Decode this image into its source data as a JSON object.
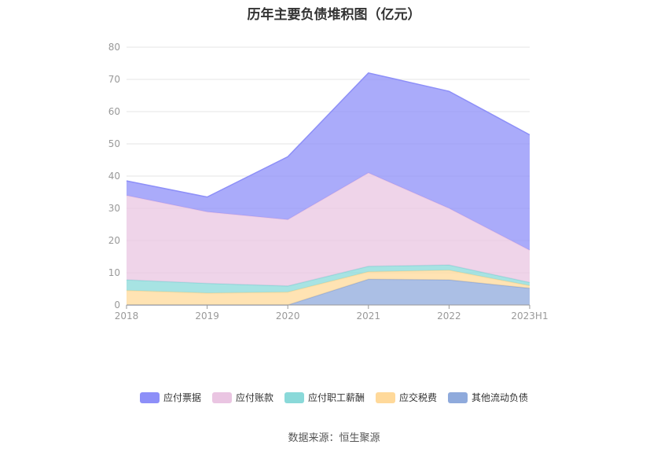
{
  "title": "历年主要负债堆积图（亿元）",
  "source": "数据来源：恒生聚源",
  "chart_data": {
    "type": "area",
    "stacked": true,
    "categories": [
      "2018",
      "2019",
      "2020",
      "2021",
      "2022",
      "2023H1"
    ],
    "ylim": [
      0,
      80
    ],
    "yticks": [
      0,
      10,
      20,
      30,
      40,
      50,
      60,
      70,
      80
    ],
    "grid": true,
    "legend_position": "bottom",
    "series": [
      {
        "name": "其他流动负债",
        "color": "#8faadc",
        "values": [
          0,
          0,
          0,
          8.0,
          7.8,
          5.2
        ]
      },
      {
        "name": "应交税费",
        "color": "#ffd99a",
        "values": [
          4.5,
          3.7,
          4.0,
          2.3,
          3.0,
          0.8
        ]
      },
      {
        "name": "应付职工薪酬",
        "color": "#8ad9d9",
        "values": [
          3.3,
          3.0,
          1.9,
          1.7,
          1.6,
          1.0
        ]
      },
      {
        "name": "应付账款",
        "color": "#eac5e2",
        "values": [
          26.2,
          22.2,
          20.6,
          29.0,
          17.6,
          10.0
        ]
      },
      {
        "name": "应付票据",
        "color": "#8d8ff8",
        "values": [
          4.5,
          4.6,
          19.5,
          31.0,
          36.3,
          35.8
        ]
      }
    ],
    "legend_order": [
      "应付票据",
      "应付账款",
      "应付职工薪酬",
      "应交税费",
      "其他流动负债"
    ]
  }
}
